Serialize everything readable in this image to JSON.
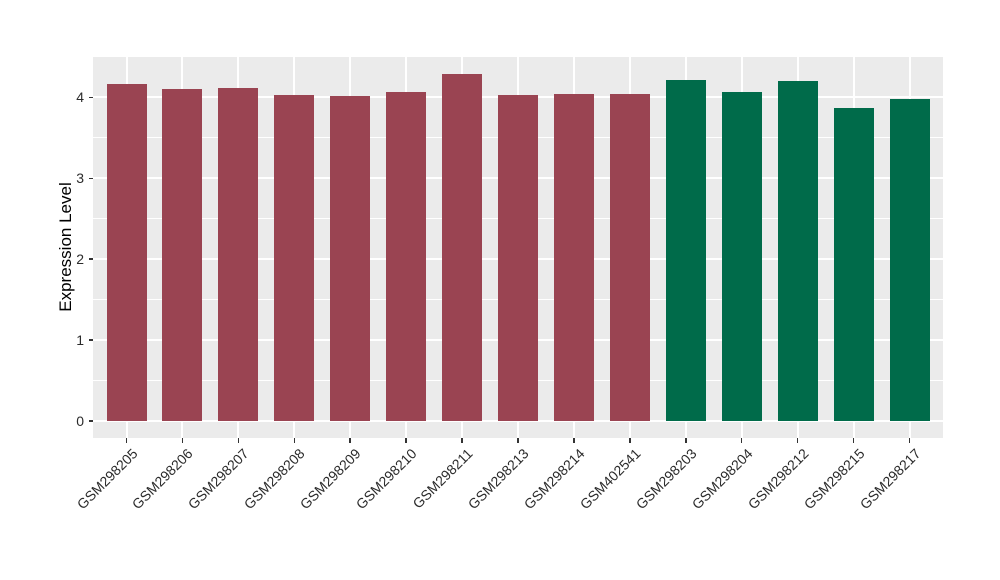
{
  "chart_data": {
    "type": "bar",
    "title": "",
    "xlabel": "",
    "ylabel": "Expression Level",
    "ylim": [
      0,
      4.5
    ],
    "yticks": [
      0,
      1,
      2,
      3,
      4
    ],
    "grid": "white major and minor gridlines on gray panel",
    "legend": "none",
    "categories": [
      "GSM298205",
      "GSM298206",
      "GSM298207",
      "GSM298208",
      "GSM298209",
      "GSM298210",
      "GSM298211",
      "GSM298213",
      "GSM298214",
      "GSM402541",
      "GSM298203",
      "GSM298204",
      "GSM298212",
      "GSM298215",
      "GSM298217"
    ],
    "values": [
      4.17,
      4.1,
      4.12,
      4.03,
      4.02,
      4.07,
      4.29,
      4.03,
      4.04,
      4.04,
      4.21,
      4.07,
      4.2,
      3.87,
      3.98
    ],
    "bar_groups": [
      "maroon",
      "maroon",
      "maroon",
      "maroon",
      "maroon",
      "maroon",
      "maroon",
      "maroon",
      "maroon",
      "maroon",
      "green",
      "green",
      "green",
      "green",
      "green"
    ],
    "group_colors": {
      "maroon": "#9A4452",
      "green": "#006B4A"
    }
  },
  "style": {
    "page_bg": "#FFFFFF",
    "panel_bg": "#EBEBEB",
    "grid_color": "#FFFFFF",
    "tick_color": "#333333",
    "tick_label_color": "#2B2B2B",
    "axis_title_color": "#000000"
  }
}
